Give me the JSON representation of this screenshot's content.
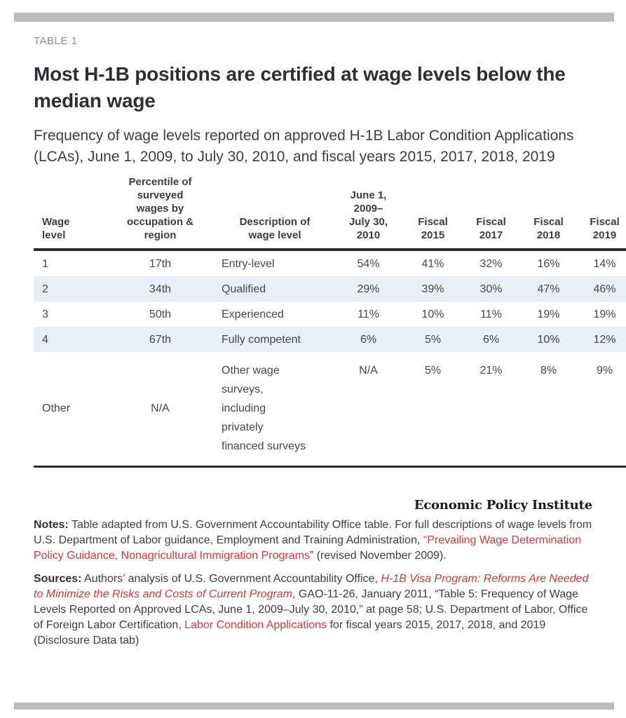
{
  "chart_data": {
    "type": "table",
    "table_label": "TABLE 1",
    "title": "Most H-1B positions are certified at wage levels below the median wage",
    "subtitle": "Frequency of wage levels reported on approved H-1B Labor Condition Applications (LCAs), June 1, 2009, to July 30, 2010, and fiscal years 2015, 2017, 2018, 2019",
    "columns": [
      "Wage\nlevel",
      "Percentile of\nsurveyed\nwages by\noccupation &\nregion",
      "Description of\nwage level",
      "June 1,\n2009–\nJuly 30,\n2010",
      "Fiscal\n2015",
      "Fiscal\n2017",
      "Fiscal\n2018",
      "Fiscal\n2019"
    ],
    "rows": [
      [
        "1",
        "17th",
        "Entry-level",
        "54%",
        "41%",
        "32%",
        "16%",
        "14%"
      ],
      [
        "2",
        "34th",
        "Qualified",
        "29%",
        "39%",
        "30%",
        "47%",
        "46%"
      ],
      [
        "3",
        "50th",
        "Experienced",
        "11%",
        "10%",
        "11%",
        "19%",
        "19%"
      ],
      [
        "4",
        "67th",
        "Fully competent",
        "6%",
        "5%",
        "6%",
        "10%",
        "12%"
      ],
      [
        "Other",
        "N/A",
        "Other wage\nsurveys,\nincluding\nprivately\nfinanced surveys",
        "N/A",
        "5%",
        "21%",
        "8%",
        "9%"
      ]
    ]
  },
  "branding": {
    "name": "Economic Policy Institute"
  },
  "notes": {
    "segments": [
      {
        "style": "bold",
        "text": "Notes:"
      },
      {
        "style": "text",
        "text": " Table adapted from U.S. Government Accountability Office table. For full descriptions of wage levels from U.S. Department of Labor guidance, Employment and Training Administration, "
      },
      {
        "style": "link",
        "name": "prevailing-wage-guidance-link",
        "text": "“Prevailing Wage Determination Policy Guidance, Nonagricultural Immigration Programs"
      },
      {
        "style": "text",
        "text": "” (revised November 2009)."
      }
    ]
  },
  "sources": {
    "segments": [
      {
        "style": "bold",
        "text": "Sources:"
      },
      {
        "style": "text",
        "text": " Authors’ analysis of U.S. Government Accountability Office, "
      },
      {
        "style": "link-italic",
        "name": "gao-report-link",
        "text": "H-1B Visa Program: Reforms Are Needed to Minimize the Risks and Costs of Current Program"
      },
      {
        "style": "text",
        "text": ", GAO-11-26, January 2011, “Table 5: Frequency of Wage Levels Reported on Approved LCAs, June 1, 2009–July 30, 2010,” at page 58; U.S. Department of Labor, Office of Foreign Labor Certification, "
      },
      {
        "style": "link",
        "name": "labor-condition-applications-link",
        "text": "Labor Condition Applications"
      },
      {
        "style": "text",
        "text": " for fiscal years 2015, 2017, 2018, and 2019 (Disclosure Data tab)"
      }
    ]
  },
  "colors": {
    "accent_red": "#d2393e",
    "shaded_row": "#e9eff6",
    "divider_gray": "#bdbdbd"
  }
}
